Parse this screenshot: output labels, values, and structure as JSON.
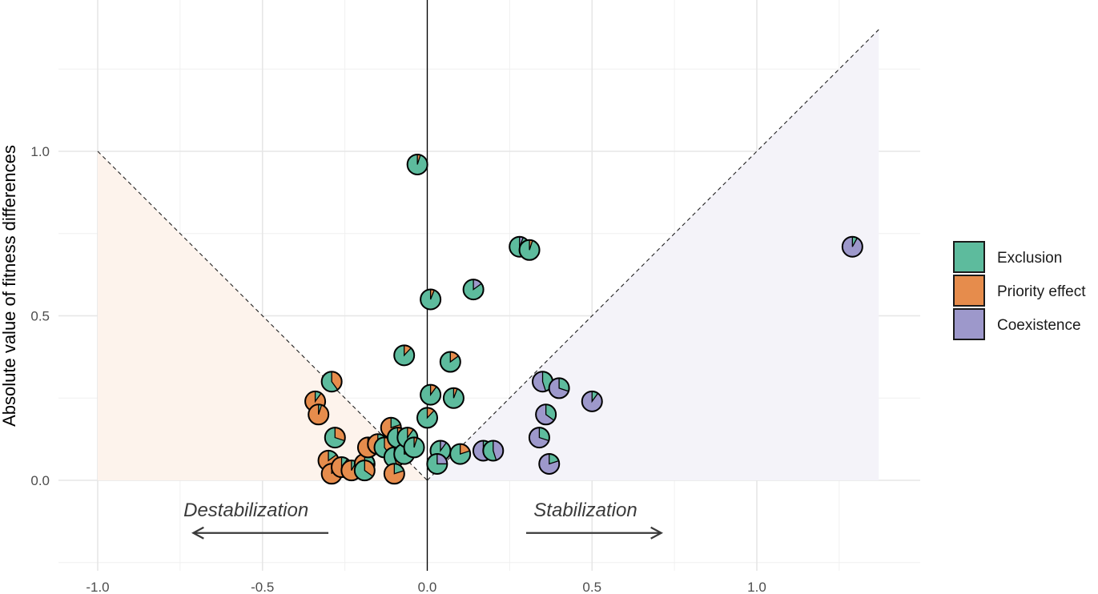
{
  "chart_data": {
    "type": "scatter",
    "title": "",
    "xlabel": "",
    "ylabel": "Absolute value of fitness differences",
    "xlim": [
      -1.05,
      1.5
    ],
    "ylim": [
      -0.25,
      1.38
    ],
    "grid": true,
    "x_ticks": [
      "-1.0",
      "-0.5",
      "0.0",
      "0.5",
      "1.0"
    ],
    "y_ticks": [
      "0.0",
      "0.5",
      "1.0"
    ],
    "legend_position": "right",
    "legend": [
      {
        "name": "Exclusion",
        "color": "#5dbb9d"
      },
      {
        "name": "Priority effect",
        "color": "#e68c4c"
      },
      {
        "name": "Coexistence",
        "color": "#9d98cb"
      }
    ],
    "regions": [
      {
        "name": "Priority effect",
        "color": "#fdf3ec",
        "polygon": [
          [
            -1.0,
            0.0
          ],
          [
            -1.0,
            1.0
          ],
          [
            0.0,
            0.0
          ]
        ]
      },
      {
        "name": "Coexistence",
        "color": "#f4f3f9",
        "polygon": [
          [
            0.0,
            0.0
          ],
          [
            1.37,
            1.37
          ],
          [
            1.37,
            0.0
          ]
        ]
      }
    ],
    "boundary_lines": [
      {
        "from": [
          -1.0,
          1.0
        ],
        "to": [
          0.0,
          0.0
        ],
        "style": "dashed"
      },
      {
        "from": [
          0.0,
          0.0
        ],
        "to": [
          1.37,
          1.37
        ],
        "style": "dashed"
      }
    ],
    "annotations": [
      {
        "text": "Destabilization",
        "x": -0.55,
        "y": -0.09,
        "arrow_from": [
          -0.3,
          -0.16
        ],
        "arrow_to": [
          -0.71,
          -0.16
        ]
      },
      {
        "text": "Stabilization",
        "x": 0.48,
        "y": -0.09,
        "arrow_from": [
          0.3,
          -0.16
        ],
        "arrow_to": [
          0.71,
          -0.16
        ]
      }
    ],
    "points": [
      {
        "x": -0.03,
        "y": 0.96,
        "main": "Exclusion",
        "secondary": "Priority effect",
        "share": 0.05
      },
      {
        "x": 0.28,
        "y": 0.71,
        "main": "Exclusion",
        "secondary": "Coexistence",
        "share": 0.06
      },
      {
        "x": 0.31,
        "y": 0.7,
        "main": "Exclusion",
        "secondary": "Priority effect",
        "share": 0.05
      },
      {
        "x": 0.14,
        "y": 0.58,
        "main": "Exclusion",
        "secondary": "Coexistence",
        "share": 0.15
      },
      {
        "x": 0.01,
        "y": 0.55,
        "main": "Exclusion",
        "secondary": "Priority effect",
        "share": 0.06
      },
      {
        "x": -0.07,
        "y": 0.38,
        "main": "Exclusion",
        "secondary": "Priority effect",
        "share": 0.12
      },
      {
        "x": 0.07,
        "y": 0.36,
        "main": "Exclusion",
        "secondary": "Priority effect",
        "share": 0.15
      },
      {
        "x": 0.01,
        "y": 0.26,
        "main": "Exclusion",
        "secondary": "Priority effect",
        "share": 0.1
      },
      {
        "x": 0.08,
        "y": 0.25,
        "main": "Exclusion",
        "secondary": "Priority effect",
        "share": 0.06
      },
      {
        "x": 0.0,
        "y": 0.19,
        "main": "Exclusion",
        "secondary": "Priority effect",
        "share": 0.12
      },
      {
        "x": -0.29,
        "y": 0.3,
        "main": "Exclusion",
        "secondary": "Priority effect",
        "share": 0.4
      },
      {
        "x": -0.28,
        "y": 0.13,
        "main": "Exclusion",
        "secondary": "Priority effect",
        "share": 0.3
      },
      {
        "x": -0.34,
        "y": 0.24,
        "main": "Priority effect",
        "secondary": "Exclusion",
        "share": 0.1
      },
      {
        "x": -0.33,
        "y": 0.2,
        "main": "Priority effect",
        "secondary": "Exclusion",
        "share": 0.05
      },
      {
        "x": -0.3,
        "y": 0.06,
        "main": "Priority effect",
        "secondary": "Exclusion",
        "share": 0.15
      },
      {
        "x": -0.29,
        "y": 0.02,
        "main": "Priority effect",
        "secondary": "Exclusion",
        "share": 0.05
      },
      {
        "x": -0.26,
        "y": 0.04,
        "main": "Priority effect",
        "secondary": "Exclusion",
        "share": 0.1
      },
      {
        "x": -0.23,
        "y": 0.03,
        "main": "Priority effect",
        "secondary": "Exclusion",
        "share": 0.08
      },
      {
        "x": -0.19,
        "y": 0.05,
        "main": "Priority effect",
        "secondary": "Exclusion",
        "share": 0.25
      },
      {
        "x": -0.19,
        "y": 0.03,
        "main": "Exclusion",
        "secondary": "Priority effect",
        "share": 0.35
      },
      {
        "x": -0.18,
        "y": 0.1,
        "main": "Priority effect",
        "secondary": "Exclusion",
        "share": 0.3
      },
      {
        "x": -0.15,
        "y": 0.11,
        "main": "Priority effect",
        "secondary": "Exclusion",
        "share": 0.45
      },
      {
        "x": -0.13,
        "y": 0.1,
        "main": "Exclusion",
        "secondary": "Priority effect",
        "share": 0.4
      },
      {
        "x": -0.11,
        "y": 0.16,
        "main": "Priority effect",
        "secondary": "Exclusion",
        "share": 0.2
      },
      {
        "x": -0.1,
        "y": 0.07,
        "main": "Exclusion",
        "secondary": "Priority effect",
        "share": 0.45
      },
      {
        "x": -0.09,
        "y": 0.13,
        "main": "Exclusion",
        "secondary": "Priority effect",
        "share": 0.3
      },
      {
        "x": -0.07,
        "y": 0.08,
        "main": "Exclusion",
        "secondary": "Priority effect",
        "share": 0.25
      },
      {
        "x": -0.1,
        "y": 0.02,
        "main": "Priority effect",
        "secondary": "Exclusion",
        "share": 0.2
      },
      {
        "x": -0.06,
        "y": 0.13,
        "main": "Exclusion",
        "secondary": "Priority effect",
        "share": 0.1
      },
      {
        "x": -0.04,
        "y": 0.1,
        "main": "Exclusion",
        "secondary": "Priority effect",
        "share": 0.05
      },
      {
        "x": 0.04,
        "y": 0.09,
        "main": "Exclusion",
        "secondary": "Coexistence",
        "share": 0.1
      },
      {
        "x": 0.03,
        "y": 0.05,
        "main": "Exclusion",
        "secondary": "Coexistence",
        "share": 0.25
      },
      {
        "x": 0.1,
        "y": 0.08,
        "main": "Exclusion",
        "secondary": "Priority effect",
        "share": 0.2
      },
      {
        "x": 0.17,
        "y": 0.09,
        "main": "Coexistence",
        "secondary": "Exclusion",
        "share": 0.4
      },
      {
        "x": 0.2,
        "y": 0.09,
        "main": "Exclusion",
        "secondary": "Coexistence",
        "share": 0.45
      },
      {
        "x": 0.35,
        "y": 0.3,
        "main": "Coexistence",
        "secondary": "Exclusion",
        "share": 0.45
      },
      {
        "x": 0.4,
        "y": 0.28,
        "main": "Coexistence",
        "secondary": "Exclusion",
        "share": 0.3
      },
      {
        "x": 0.36,
        "y": 0.2,
        "main": "Coexistence",
        "secondary": "Exclusion",
        "share": 0.35
      },
      {
        "x": 0.34,
        "y": 0.13,
        "main": "Coexistence",
        "secondary": "Exclusion",
        "share": 0.3
      },
      {
        "x": 0.37,
        "y": 0.05,
        "main": "Coexistence",
        "secondary": "Exclusion",
        "share": 0.2
      },
      {
        "x": 0.5,
        "y": 0.24,
        "main": "Coexistence",
        "secondary": "Exclusion",
        "share": 0.1
      },
      {
        "x": 1.29,
        "y": 0.71,
        "main": "Coexistence",
        "secondary": "Exclusion",
        "share": 0.08
      }
    ]
  }
}
